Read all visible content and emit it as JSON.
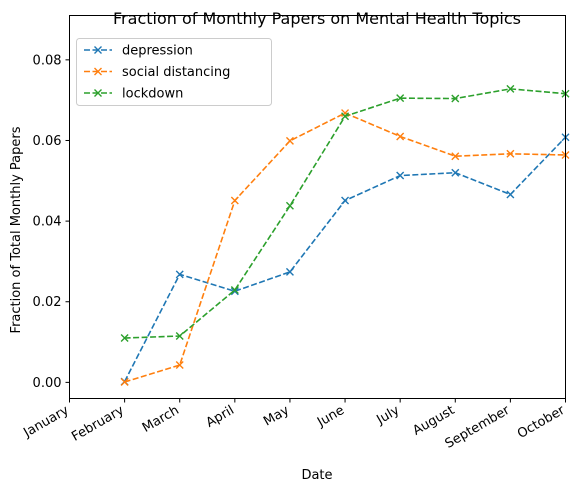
{
  "chart_data": {
    "type": "line",
    "title": "Fraction of Monthly Papers on Mental Health Topics",
    "xlabel": "Date",
    "ylabel": "Fraction of Total Monthly Papers",
    "categories": [
      "January",
      "February",
      "March",
      "April",
      "May",
      "June",
      "July",
      "August",
      "September",
      "October"
    ],
    "ylim": [
      -0.004,
      0.091
    ],
    "yticks": [
      0.0,
      0.02,
      0.04,
      0.06,
      0.08
    ],
    "ytick_labels": [
      "0.00",
      "0.02",
      "0.04",
      "0.06",
      "0.08"
    ],
    "grid": false,
    "legend_position": "top-left",
    "series": [
      {
        "name": "depression",
        "color": "#1f77b4",
        "linestyle": "dashed",
        "marker": "x",
        "values": [
          null,
          0.0002,
          0.0268,
          0.0226,
          0.0274,
          0.0451,
          0.0513,
          0.052,
          0.0466,
          0.0608
        ]
      },
      {
        "name": "social distancing",
        "color": "#ff7f0e",
        "linestyle": "dashed",
        "marker": "x",
        "values": [
          null,
          0.0001,
          0.0043,
          0.0451,
          0.0599,
          0.0668,
          0.061,
          0.0561,
          0.0567,
          0.0564
        ]
      },
      {
        "name": "lockdown",
        "color": "#2ca02c",
        "linestyle": "dashed",
        "marker": "x",
        "values": [
          null,
          0.011,
          0.0115,
          0.0229,
          0.0438,
          0.066,
          0.0705,
          0.0704,
          0.0728,
          0.0716
        ]
      }
    ]
  }
}
